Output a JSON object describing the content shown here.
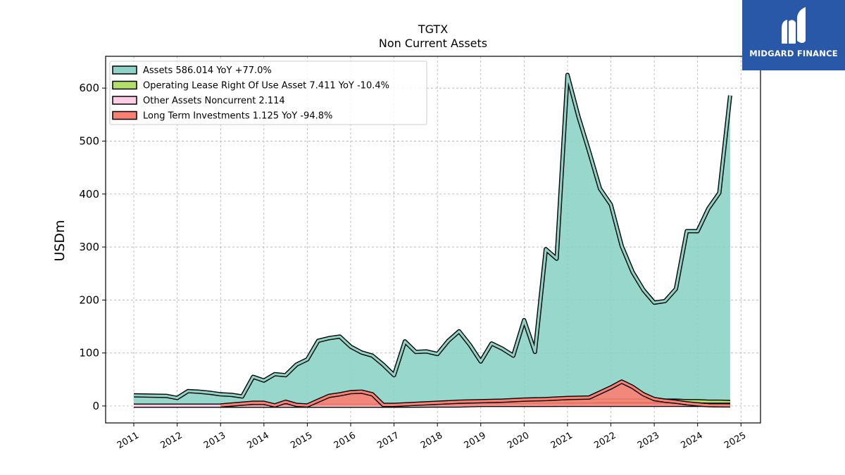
{
  "chart_data": {
    "type": "area",
    "title": "TGTX",
    "subtitle": "Non Current  Assets",
    "ylabel": "USDm",
    "xlabel": "",
    "xlim": [
      2010.35,
      2025.45
    ],
    "ylim": [
      -32,
      660
    ],
    "yticks": [
      0,
      100,
      200,
      300,
      400,
      500,
      600
    ],
    "xticks": [
      "2011",
      "2012",
      "2013",
      "2014",
      "2015",
      "2016",
      "2017",
      "2018",
      "2019",
      "2020",
      "2021",
      "2022",
      "2023",
      "2024",
      "2025"
    ],
    "grid": true,
    "legend_position": "top-left",
    "series": [
      {
        "name": "Assets  586.014 YoY +77.0%",
        "color": "#8dd3c7",
        "x": [
          2011.0,
          2011.75,
          2012.0,
          2012.25,
          2012.5,
          2012.75,
          2013.0,
          2013.25,
          2013.5,
          2013.75,
          2014.0,
          2014.25,
          2014.5,
          2014.75,
          2015.0,
          2015.25,
          2015.5,
          2015.75,
          2016.0,
          2016.25,
          2016.5,
          2016.75,
          2017.0,
          2017.25,
          2017.5,
          2017.75,
          2018.0,
          2018.25,
          2018.5,
          2018.75,
          2019.0,
          2019.25,
          2019.5,
          2019.75,
          2020.0,
          2020.25,
          2020.5,
          2020.75,
          2021.0,
          2021.25,
          2021.5,
          2021.75,
          2022.0,
          2022.25,
          2022.5,
          2022.75,
          2023.0,
          2023.25,
          2023.5,
          2023.75,
          2024.0,
          2024.25,
          2024.5,
          2024.75
        ],
        "y": [
          20,
          19,
          15,
          28,
          27,
          25,
          22,
          21,
          18,
          55,
          48,
          60,
          58,
          78,
          88,
          123,
          128,
          131,
          112,
          101,
          95,
          78,
          58,
          122,
          102,
          103,
          98,
          123,
          141,
          115,
          84,
          118,
          108,
          95,
          162,
          102,
          296,
          278,
          625,
          547,
          480,
          410,
          380,
          302,
          253,
          219,
          195,
          198,
          221,
          330,
          330,
          373,
          402,
          586
        ]
      },
      {
        "name": "Operating Lease Right Of Use Asset  7.411 YoY -10.4%",
        "color": "#b3de69",
        "x": [
          2019.25,
          2019.5,
          2019.75,
          2020.0,
          2020.25,
          2020.5,
          2020.75,
          2021.0,
          2021.25,
          2021.5,
          2021.75,
          2022.0,
          2022.25,
          2022.5,
          2022.75,
          2023.0,
          2023.25,
          2023.5,
          2023.75,
          2024.0,
          2024.25,
          2024.5,
          2024.75
        ],
        "y": [
          8,
          8,
          8,
          8,
          8,
          8,
          9,
          9,
          9,
          9,
          10,
          10,
          10,
          10,
          10,
          10,
          10,
          10,
          9,
          9,
          8,
          8,
          7.4
        ]
      },
      {
        "name": "Other Assets Noncurrent  2.114",
        "color": "#fccde5",
        "x": [
          2011.0,
          2012.0,
          2013.0,
          2014.0,
          2015.0,
          2016.0,
          2016.75,
          2017.0,
          2018.0,
          2018.5,
          2018.75,
          2019.0,
          2019.25,
          2020.0,
          2021.0,
          2022.0,
          2023.0,
          2024.0,
          2024.75
        ],
        "y": [
          0.5,
          0.5,
          0.5,
          0.5,
          0.5,
          0.5,
          0.5,
          0.5,
          1.0,
          1.0,
          1.5,
          2.0,
          2.0,
          2.0,
          2.1,
          2.1,
          2.1,
          2.1,
          2.1
        ]
      },
      {
        "name": "Long Term Investments  1.125 YoY -94.8%",
        "color": "#fb8072",
        "x": [
          2013.0,
          2013.75,
          2014.0,
          2014.25,
          2014.5,
          2014.75,
          2015.0,
          2015.25,
          2015.5,
          2015.75,
          2016.0,
          2016.25,
          2016.5,
          2016.75,
          2017.0,
          2017.5,
          2018.0,
          2018.5,
          2019.0,
          2019.5,
          2020.0,
          2020.5,
          2021.0,
          2021.5,
          2022.0,
          2022.25,
          2022.5,
          2022.75,
          2023.0,
          2023.25,
          2023.5,
          2023.75,
          2024.0,
          2024.25,
          2024.5,
          2024.75
        ],
        "y": [
          1,
          6,
          6,
          1,
          8,
          2,
          1,
          10,
          19,
          22,
          26,
          27,
          22,
          2,
          2,
          4,
          6,
          8,
          9,
          10,
          12,
          13,
          15,
          16,
          35,
          46,
          36,
          22,
          13,
          10,
          8,
          5,
          3,
          1.5,
          1.2,
          1.1
        ]
      }
    ]
  },
  "brand": {
    "name": "MIDGARD FINANCE",
    "bg_color": "#2a58a8"
  }
}
